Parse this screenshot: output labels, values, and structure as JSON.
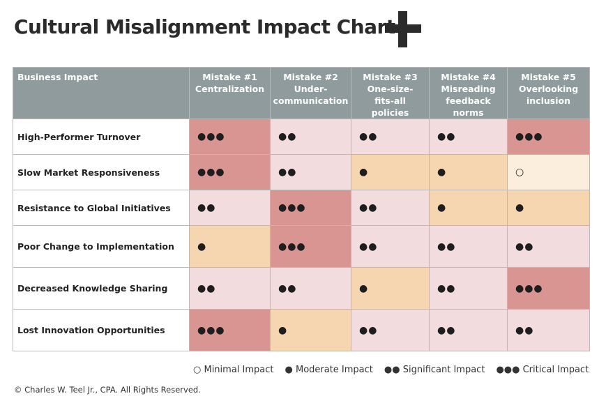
{
  "title": "Cultural Misalignment Impact Chart",
  "colors": {
    "header_bg": "#8f9b9c",
    "minimal": "#fbeedd",
    "moderate": "#f5d6b0",
    "significant": "#f3dcde",
    "critical": "#d99592"
  },
  "symbols": {
    "minimal": "○",
    "moderate": "●",
    "significant": "●●",
    "critical": "●●●"
  },
  "chart_data": {
    "type": "heatmap",
    "title": "Cultural Misalignment Impact Chart",
    "row_header": "Business Impact",
    "columns": [
      {
        "lines": [
          "Mistake #1",
          "Centralization"
        ]
      },
      {
        "lines": [
          "Mistake #2",
          "Under-",
          "communication"
        ]
      },
      {
        "lines": [
          "Mistake #3",
          "One-size-",
          "fits-all",
          "policies"
        ]
      },
      {
        "lines": [
          "Mistake #4",
          "Misreading",
          "feedback",
          "norms"
        ]
      },
      {
        "lines": [
          "Mistake #5",
          "Overlooking",
          "inclusion"
        ]
      }
    ],
    "rows": [
      {
        "label": "High-Performer Turnover",
        "values": [
          "critical",
          "significant",
          "significant",
          "significant",
          "critical"
        ]
      },
      {
        "label": "Slow Market Responsiveness",
        "values": [
          "critical",
          "significant",
          "moderate",
          "moderate",
          "minimal"
        ]
      },
      {
        "label": "Resistance to Global Initiatives",
        "values": [
          "significant",
          "critical",
          "significant",
          "moderate",
          "moderate"
        ]
      },
      {
        "label": "Poor Change to Implementation",
        "values": [
          "moderate",
          "critical",
          "significant",
          "significant",
          "significant"
        ]
      },
      {
        "label": "Decreased Knowledge Sharing",
        "values": [
          "significant",
          "significant",
          "moderate",
          "significant",
          "critical"
        ]
      },
      {
        "label": "Lost Innovation Opportunities",
        "values": [
          "critical",
          "moderate",
          "significant",
          "significant",
          "significant"
        ]
      }
    ],
    "legend": [
      {
        "symbol": "○",
        "label": "Minimal Impact"
      },
      {
        "symbol": "●",
        "label": "Moderate Impact"
      },
      {
        "symbol": "●●",
        "label": "Significant Impact"
      },
      {
        "symbol": "●●●",
        "label": "Critical Impact"
      }
    ]
  },
  "footer": "© Charles W. Teel Jr., CPA.  All Rights Reserved."
}
